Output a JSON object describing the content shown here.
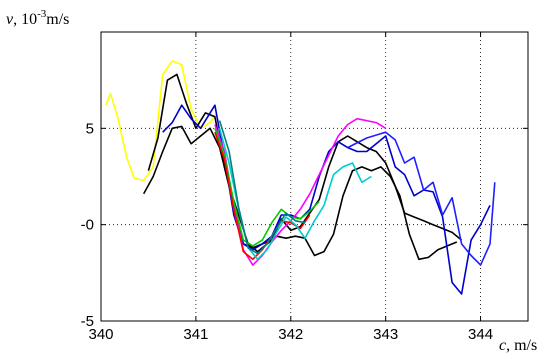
{
  "chart_data": {
    "type": "line",
    "title": "",
    "ylabel": {
      "var": "v",
      "sep": ", ",
      "pre": "10",
      "sup": "-3",
      "unit": "m/s"
    },
    "xlabel": {
      "var": "c",
      "sep": ", ",
      "unit": "m/s"
    },
    "xlim": [
      340,
      344.5
    ],
    "ylim": [
      -5,
      10
    ],
    "grid": true,
    "x_ticks": [
      340,
      341,
      342,
      343,
      344
    ],
    "x_tick_labels": [
      "340",
      "341",
      "342",
      "343",
      "344"
    ],
    "y_ticks": [
      -5,
      0,
      5,
      10
    ],
    "y_tick_labels": [
      "-5",
      "-0",
      "5",
      ""
    ],
    "series": [
      {
        "color": "#ffff00",
        "x": [
          340.05,
          340.1,
          340.18,
          340.27,
          340.35,
          340.45,
          340.55,
          340.65,
          340.75,
          340.85,
          340.95,
          341.05,
          341.15,
          341.22
        ],
        "y": [
          6.2,
          6.8,
          5.5,
          3.5,
          2.4,
          2.3,
          3.0,
          7.8,
          8.5,
          8.3,
          6.0,
          5.0,
          5.3,
          5.8
        ]
      },
      {
        "color": "#000000",
        "x": [
          340.45,
          340.55,
          340.65,
          340.75,
          340.85,
          340.95,
          341.05,
          341.15,
          341.25,
          341.35,
          341.45,
          341.55,
          341.65,
          341.75,
          341.85,
          341.95,
          342.05,
          342.15,
          342.25,
          342.35,
          342.45,
          342.55,
          342.65,
          342.75,
          342.85,
          342.95,
          343.05,
          343.15,
          343.25,
          343.35,
          343.45,
          343.55,
          343.65,
          343.75
        ],
        "y": [
          1.6,
          2.5,
          3.8,
          5.0,
          5.1,
          4.2,
          4.6,
          5.0,
          4.0,
          2.0,
          0.5,
          -1.0,
          -1.4,
          -1.0,
          -0.6,
          -0.7,
          -0.6,
          -0.7,
          -1.6,
          -1.4,
          -0.5,
          1.5,
          2.8,
          3.0,
          2.8,
          3.0,
          2.5,
          1.5,
          -0.5,
          -1.8,
          -1.7,
          -1.3,
          -1.1,
          -0.9
        ]
      },
      {
        "color": "#000000",
        "x": [
          340.5,
          340.6,
          340.7,
          340.8,
          340.9,
          341.0,
          341.1,
          341.2,
          341.3,
          341.4,
          341.5,
          341.6,
          341.7,
          341.8,
          341.9,
          342.0,
          342.1,
          342.2,
          342.3,
          342.4,
          342.5,
          342.6,
          342.7,
          342.8,
          342.9,
          343.0,
          343.1,
          343.2,
          343.3,
          343.4,
          343.5,
          343.6,
          343.7,
          343.8
        ],
        "y": [
          2.8,
          4.5,
          7.5,
          7.8,
          6.3,
          5.0,
          5.8,
          5.6,
          3.0,
          1.0,
          -1.0,
          -1.2,
          -1.0,
          -0.8,
          0.3,
          -0.3,
          -0.1,
          0.6,
          1.3,
          3.0,
          4.3,
          4.6,
          4.3,
          4.0,
          3.8,
          3.2,
          2.0,
          0.6,
          0.4,
          0.2,
          0.0,
          -0.2,
          -0.4,
          -0.8
        ]
      },
      {
        "color": "#0000cc",
        "x": [
          340.65,
          340.75,
          340.85,
          340.95,
          341.05,
          341.15,
          341.2,
          341.3,
          341.4,
          341.5,
          341.6,
          341.7,
          341.8,
          341.9,
          342.0,
          342.1,
          342.2,
          342.3,
          342.4,
          342.5,
          342.6,
          342.7,
          342.8,
          342.9,
          343.0,
          343.1,
          343.2,
          343.3,
          343.4,
          343.5,
          343.6,
          343.7,
          343.8,
          343.9,
          344.0,
          344.1
        ],
        "y": [
          4.8,
          5.3,
          6.2,
          5.5,
          5.0,
          5.8,
          6.2,
          3.5,
          0.5,
          -1.0,
          -1.3,
          -1.0,
          -0.6,
          0.5,
          0.5,
          0.3,
          0.8,
          2.5,
          3.8,
          4.3,
          4.0,
          3.8,
          3.8,
          4.2,
          4.6,
          3.0,
          2.6,
          1.5,
          1.8,
          1.7,
          0.4,
          -3.0,
          -3.6,
          -0.8,
          0.0,
          1.0
        ]
      },
      {
        "color": "#2020ff",
        "x": [
          342.6,
          342.8,
          343.0,
          343.1,
          343.2,
          343.3,
          343.4,
          343.5,
          343.6,
          343.7,
          343.8,
          343.9,
          344.0,
          344.1,
          344.15
        ],
        "y": [
          4.0,
          4.5,
          4.8,
          4.4,
          3.2,
          3.5,
          1.8,
          2.2,
          0.5,
          1.4,
          -1.0,
          -1.6,
          -2.1,
          -1.0,
          2.2
        ]
      },
      {
        "color": "#ff00ff",
        "x": [
          341.2,
          341.3,
          341.4,
          341.5,
          341.6,
          341.7,
          341.8,
          341.9,
          342.0,
          342.1,
          342.2,
          342.3,
          342.4,
          342.5,
          342.6,
          342.7,
          342.9,
          343.0
        ],
        "y": [
          5.2,
          3.8,
          1.0,
          -1.3,
          -2.1,
          -1.6,
          -0.9,
          -0.3,
          0.2,
          0.8,
          1.6,
          2.6,
          3.6,
          4.6,
          5.2,
          5.5,
          5.3,
          5.0
        ]
      },
      {
        "color": "#00cc00",
        "x": [
          341.2,
          341.3,
          341.4,
          341.5,
          341.6,
          341.7,
          341.8,
          341.9,
          342.0,
          342.1,
          342.2,
          342.3
        ],
        "y": [
          5.0,
          3.6,
          1.2,
          -0.8,
          -1.1,
          -0.8,
          0.1,
          0.8,
          0.4,
          0.3,
          0.7,
          1.2
        ]
      },
      {
        "color": "#ff0000",
        "x": [
          341.2,
          341.3,
          341.4,
          341.5,
          341.6,
          341.7,
          341.8,
          341.9,
          342.0,
          342.1,
          342.2
        ],
        "y": [
          4.8,
          3.4,
          0.8,
          -1.4,
          -1.8,
          -1.3,
          -0.6,
          0.2,
          0.1,
          -0.2,
          0.5
        ]
      },
      {
        "color": "#00cccc",
        "x": [
          341.25,
          341.35,
          341.45,
          341.55,
          341.65,
          341.75,
          341.85,
          341.95,
          342.05,
          342.15,
          342.25,
          342.35,
          342.45,
          342.55,
          342.65,
          342.75,
          342.85
        ],
        "y": [
          5.0,
          3.2,
          0.8,
          -1.2,
          -1.8,
          -1.3,
          -0.4,
          0.4,
          0.0,
          -0.7,
          0.2,
          1.0,
          2.6,
          3.0,
          3.2,
          2.2,
          2.5
        ]
      },
      {
        "color": "#008080",
        "x": [
          341.25,
          341.35,
          341.45,
          341.55,
          341.65,
          341.75,
          341.85,
          341.95,
          342.05,
          342.15
        ],
        "y": [
          5.4,
          3.8,
          0.9,
          -1.2,
          -1.5,
          -1.0,
          -0.2,
          0.6,
          0.2,
          0.1
        ]
      }
    ]
  }
}
